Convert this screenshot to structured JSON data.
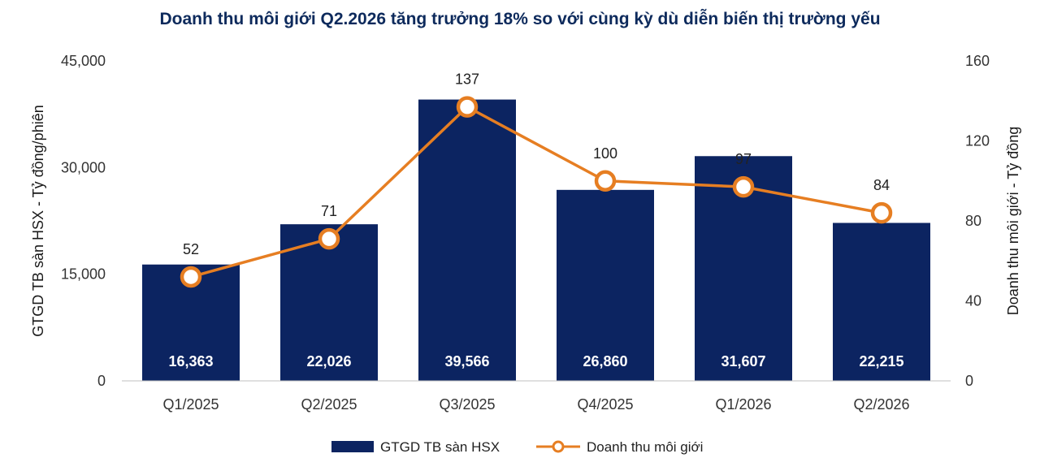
{
  "chart_data": {
    "type": "bar",
    "title": "Doanh thu môi giới Q2.2026 tăng trưởng 18% so với cùng kỳ dù diễn biến thị trường yếu",
    "categories": [
      "Q1/2025",
      "Q2/2025",
      "Q3/2025",
      "Q4/2025",
      "Q1/2026",
      "Q2/2026"
    ],
    "series": [
      {
        "name": "GTGD TB sàn HSX",
        "type": "bar",
        "axis": "left",
        "color": "#0c2461",
        "values": [
          16363,
          22026,
          39566,
          26860,
          31607,
          22215
        ],
        "value_labels": [
          "16,363",
          "22,026",
          "39,566",
          "26,860",
          "31,607",
          "22,215"
        ]
      },
      {
        "name": "Doanh thu môi giới",
        "type": "line",
        "axis": "right",
        "color": "#e67e22",
        "values": [
          52,
          71,
          137,
          100,
          97,
          84
        ],
        "value_labels": [
          "52",
          "71",
          "137",
          "100",
          "97",
          "84"
        ]
      }
    ],
    "ylabel": "GTGD TB sàn HSX - Tỷ đồng/phiên",
    "ylabel_right": "Doanh thu môi giới - Tỷ đồng",
    "ylim": [
      0,
      45000
    ],
    "ylim_right": [
      0,
      160
    ],
    "yticks": [
      "0",
      "15,000",
      "30,000",
      "45,000"
    ],
    "yticks_right": [
      "0",
      "40",
      "80",
      "120",
      "160"
    ],
    "grid": false,
    "legend_position": "bottom"
  }
}
